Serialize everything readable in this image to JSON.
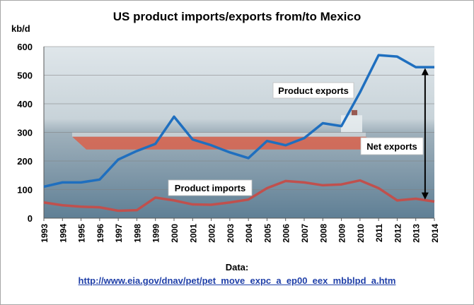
{
  "chart_data": {
    "type": "line",
    "title": "US product imports/exports from/to Mexico",
    "ylabel": "kb/d",
    "xlabel": "",
    "ylim": [
      0,
      600
    ],
    "yticks": [
      0,
      100,
      200,
      300,
      400,
      500,
      600
    ],
    "grid": true,
    "background": "photo of an oil tanker at sea",
    "x": [
      1993,
      1994,
      1995,
      1996,
      1997,
      1998,
      1999,
      2000,
      2001,
      2002,
      2003,
      2004,
      2005,
      2006,
      2007,
      2008,
      2009,
      2010,
      2011,
      2012,
      2013,
      2014
    ],
    "series": [
      {
        "name": "Product exports",
        "color": "#1f6fbf",
        "values": [
          110,
          125,
          125,
          135,
          205,
          235,
          260,
          355,
          275,
          255,
          230,
          210,
          270,
          255,
          280,
          332,
          322,
          440,
          570,
          565,
          528,
          528
        ]
      },
      {
        "name": "Product imports",
        "color": "#c0504d",
        "values": [
          55,
          45,
          40,
          38,
          26,
          28,
          72,
          62,
          48,
          47,
          55,
          65,
          105,
          130,
          125,
          115,
          118,
          132,
          105,
          62,
          68,
          58
        ]
      }
    ],
    "annotations": [
      {
        "text": "Product exports"
      },
      {
        "text": "Product imports"
      },
      {
        "text": "Net exports"
      }
    ]
  },
  "source": {
    "label": "Data:",
    "url": "http://www.eia.gov/dnav/pet/pet_move_expc_a_ep00_eex_mbblpd_a.htm"
  }
}
